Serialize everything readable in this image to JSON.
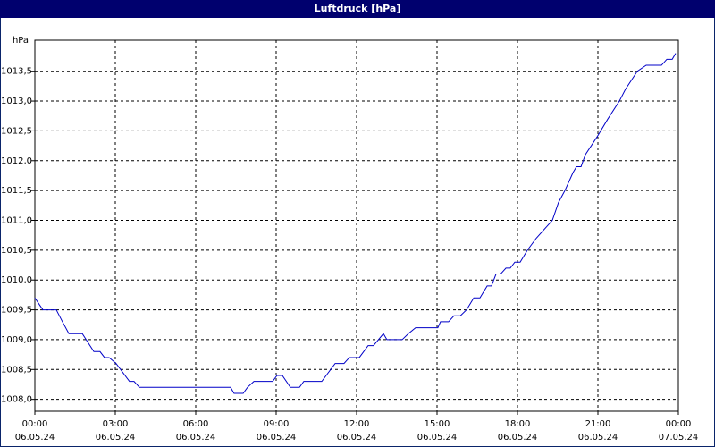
{
  "chart_data": {
    "type": "line",
    "title": "Luftdruck [hPa]",
    "y_label": "hPa",
    "x": [
      0,
      0.3,
      0.8,
      1.03,
      1.27,
      1.77,
      2.2,
      2.43,
      2.6,
      2.77,
      3.03,
      3.53,
      3.7,
      3.9,
      7.3,
      7.43,
      7.77,
      7.93,
      8.17,
      8.87,
      9.03,
      9.23,
      9.53,
      9.87,
      10.03,
      10.7,
      11.2,
      11.53,
      11.73,
      12.1,
      12.43,
      12.63,
      13.0,
      13.13,
      13.7,
      13.93,
      14.2,
      15.03,
      15.13,
      15.43,
      15.63,
      15.87,
      16.1,
      16.37,
      16.6,
      16.87,
      17.03,
      17.2,
      17.37,
      17.57,
      17.73,
      17.9,
      18.1,
      18.37,
      18.7,
      19.1,
      19.3,
      19.53,
      19.77,
      20.07,
      20.2,
      20.37,
      20.53,
      20.97,
      21.37,
      21.8,
      22.03,
      22.47,
      22.8,
      23.37,
      23.57,
      23.77,
      23.9
    ],
    "series": [
      {
        "name": "Luftdruck",
        "color": "#0000c8",
        "values": [
          1009.7,
          1009.5,
          1009.5,
          1009.3,
          1009.1,
          1009.1,
          1008.8,
          1008.8,
          1008.7,
          1008.7,
          1008.6,
          1008.3,
          1008.3,
          1008.2,
          1008.2,
          1008.1,
          1008.1,
          1008.2,
          1008.3,
          1008.3,
          1008.4,
          1008.4,
          1008.2,
          1008.2,
          1008.3,
          1008.3,
          1008.6,
          1008.6,
          1008.7,
          1008.7,
          1008.9,
          1008.9,
          1009.1,
          1009.0,
          1009.0,
          1009.1,
          1009.2,
          1009.2,
          1009.3,
          1009.3,
          1009.4,
          1009.4,
          1009.5,
          1009.7,
          1009.7,
          1009.9,
          1009.9,
          1010.1,
          1010.1,
          1010.2,
          1010.2,
          1010.3,
          1010.3,
          1010.5,
          1010.7,
          1010.9,
          1011.0,
          1011.3,
          1011.5,
          1011.8,
          1011.9,
          1011.9,
          1012.1,
          1012.4,
          1012.7,
          1013.0,
          1013.2,
          1013.5,
          1013.6,
          1013.6,
          1013.7,
          1013.7,
          1013.8
        ]
      }
    ],
    "xlim": [
      0,
      24
    ],
    "ylim": [
      1007.8,
      1014.02
    ],
    "xticks": [
      {
        "value": 0,
        "label": "00:00",
        "sublabel": "06.05.24"
      },
      {
        "value": 3,
        "label": "03:00",
        "sublabel": "06.05.24"
      },
      {
        "value": 6,
        "label": "06:00",
        "sublabel": "06.05.24"
      },
      {
        "value": 9,
        "label": "09:00",
        "sublabel": "06.05.24"
      },
      {
        "value": 12,
        "label": "12:00",
        "sublabel": "06.05.24"
      },
      {
        "value": 15,
        "label": "15:00",
        "sublabel": "06.05.24"
      },
      {
        "value": 18,
        "label": "18:00",
        "sublabel": "06.05.24"
      },
      {
        "value": 21,
        "label": "21:00",
        "sublabel": "06.05.24"
      },
      {
        "value": 24,
        "label": "00:00",
        "sublabel": "07.05.24"
      }
    ],
    "yticks": [
      {
        "value": 1008.0,
        "label": "1008,0"
      },
      {
        "value": 1008.5,
        "label": "1008,5"
      },
      {
        "value": 1009.0,
        "label": "1009,0"
      },
      {
        "value": 1009.5,
        "label": "1009,5"
      },
      {
        "value": 1010.0,
        "label": "1010,0"
      },
      {
        "value": 1010.5,
        "label": "1010,5"
      },
      {
        "value": 1011.0,
        "label": "1011,0"
      },
      {
        "value": 1011.5,
        "label": "1011,5"
      },
      {
        "value": 1012.0,
        "label": "1012,0"
      },
      {
        "value": 1012.5,
        "label": "1012,5"
      },
      {
        "value": 1013.0,
        "label": "1013,0"
      },
      {
        "value": 1013.5,
        "label": "1013,5"
      }
    ],
    "grid": true
  }
}
